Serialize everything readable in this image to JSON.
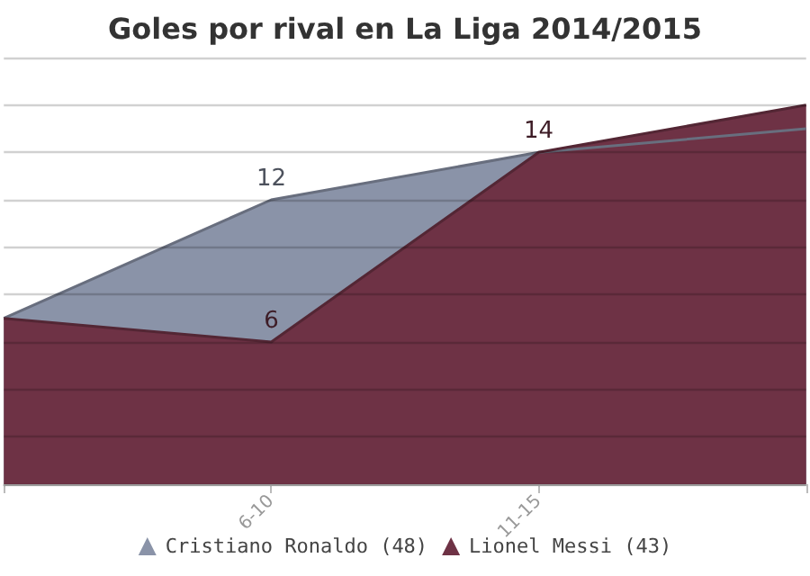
{
  "chart_data": {
    "type": "area",
    "title": "Goles por rival en La Liga 2014/2015",
    "categories": [
      null,
      "6-10",
      "11-15",
      null
    ],
    "series": [
      {
        "name": "Cristiano Ronaldo (48)",
        "color": "#8a93a8",
        "values": [
          7,
          12,
          14,
          15
        ],
        "value_labels": [
          null,
          "12",
          null,
          null
        ]
      },
      {
        "name": "Lionel Messi (43)",
        "color": "#6e3245",
        "values": [
          7,
          6,
          14,
          16
        ],
        "value_labels": [
          null,
          "6",
          "14",
          null
        ]
      }
    ],
    "ylim": [
      0,
      18
    ],
    "yticks": [
      0,
      2,
      4,
      6,
      8,
      10,
      12,
      14,
      16,
      18
    ],
    "grid": "y",
    "tick_labels": "x",
    "legend": "bottom"
  }
}
